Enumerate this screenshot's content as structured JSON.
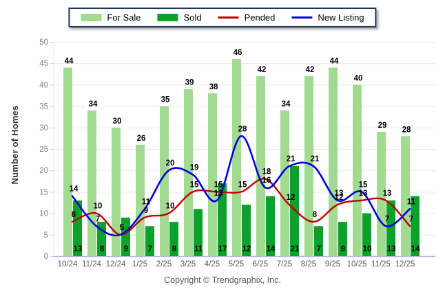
{
  "footer": "Copyright © Trendgraphix, Inc.",
  "colors": {
    "for_sale": "#A3DA92",
    "sold": "#0AA22B",
    "pended": "#C00000",
    "new_listing": "#0000E0",
    "legend_border": "#17375E",
    "grid_line": "#E9E9E9",
    "axis_line": "#A9BCD6",
    "y_tick_text": "#7F7F7F",
    "x_tick_text": "#5A5A5A",
    "data_label": "#000000"
  },
  "legend": {
    "items": [
      {
        "label": "For Sale",
        "kind": "bar",
        "color": "#A3DA92"
      },
      {
        "label": "Sold",
        "kind": "bar",
        "color": "#0AA22B"
      },
      {
        "label": "Pended",
        "kind": "line",
        "color": "#C00000"
      },
      {
        "label": "New Listing",
        "kind": "line",
        "color": "#0000E0"
      }
    ]
  },
  "chart_data": {
    "type": "bar",
    "subtype": "grouped-bars-with-smooth-lines",
    "title": "",
    "xlabel": "",
    "ylabel": "Number of Homes",
    "ylim": [
      0,
      50
    ],
    "ytick_step": 5,
    "grid": true,
    "legend_position": "top-center",
    "categories": [
      "10/24",
      "11/24",
      "12/24",
      "1/25",
      "2/25",
      "3/25",
      "4/25",
      "5/25",
      "6/25",
      "7/25",
      "8/25",
      "9/25",
      "10/25",
      "11/25",
      "12/25"
    ],
    "series": [
      {
        "name": "For Sale",
        "type": "bar",
        "color": "#A3DA92",
        "values": [
          44,
          34,
          30,
          26,
          35,
          39,
          38,
          46,
          42,
          34,
          42,
          44,
          40,
          29,
          28
        ]
      },
      {
        "name": "Sold",
        "type": "bar",
        "color": "#0AA22B",
        "values": [
          13,
          8,
          9,
          7,
          8,
          11,
          17,
          12,
          14,
          21,
          7,
          8,
          10,
          13,
          14
        ]
      },
      {
        "name": "Pended",
        "type": "line",
        "color": "#C00000",
        "values": [
          8,
          10,
          5,
          9,
          10,
          15,
          15,
          15,
          18,
          12,
          8,
          12,
          13,
          13,
          7
        ]
      },
      {
        "name": "New Listing",
        "type": "line",
        "color": "#0000E0",
        "values": [
          14,
          7,
          5,
          11,
          20,
          19,
          13,
          28,
          16,
          21,
          21,
          13,
          15,
          7,
          11
        ]
      }
    ]
  }
}
